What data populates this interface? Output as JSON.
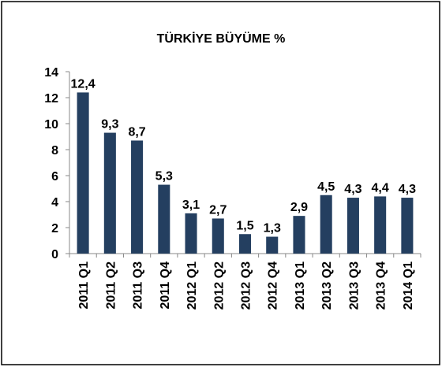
{
  "chart_data": {
    "type": "bar",
    "title": "TÜRKİYE BÜYÜME %",
    "categories": [
      "2011 Q1",
      "2011 Q2",
      "2011 Q3",
      "2011 Q4",
      "2012 Q1",
      "2012 Q2",
      "2012 Q3",
      "2012 Q4",
      "2013 Q1",
      "2013 Q2",
      "2013 Q3",
      "2013 Q4",
      "2014 Q1"
    ],
    "values": [
      12.4,
      9.3,
      8.7,
      5.3,
      3.1,
      2.7,
      1.5,
      1.3,
      2.9,
      4.5,
      4.3,
      4.4,
      4.3
    ],
    "value_labels": [
      "12,4",
      "9,3",
      "8,7",
      "5,3",
      "3,1",
      "2,7",
      "1,5",
      "1,3",
      "2,9",
      "4,5",
      "4,3",
      "4,4",
      "4,3"
    ],
    "color": "#243f60",
    "ylim": [
      0,
      14
    ],
    "yticks": [
      0,
      2,
      4,
      6,
      8,
      10,
      12,
      14
    ],
    "grid": false
  }
}
